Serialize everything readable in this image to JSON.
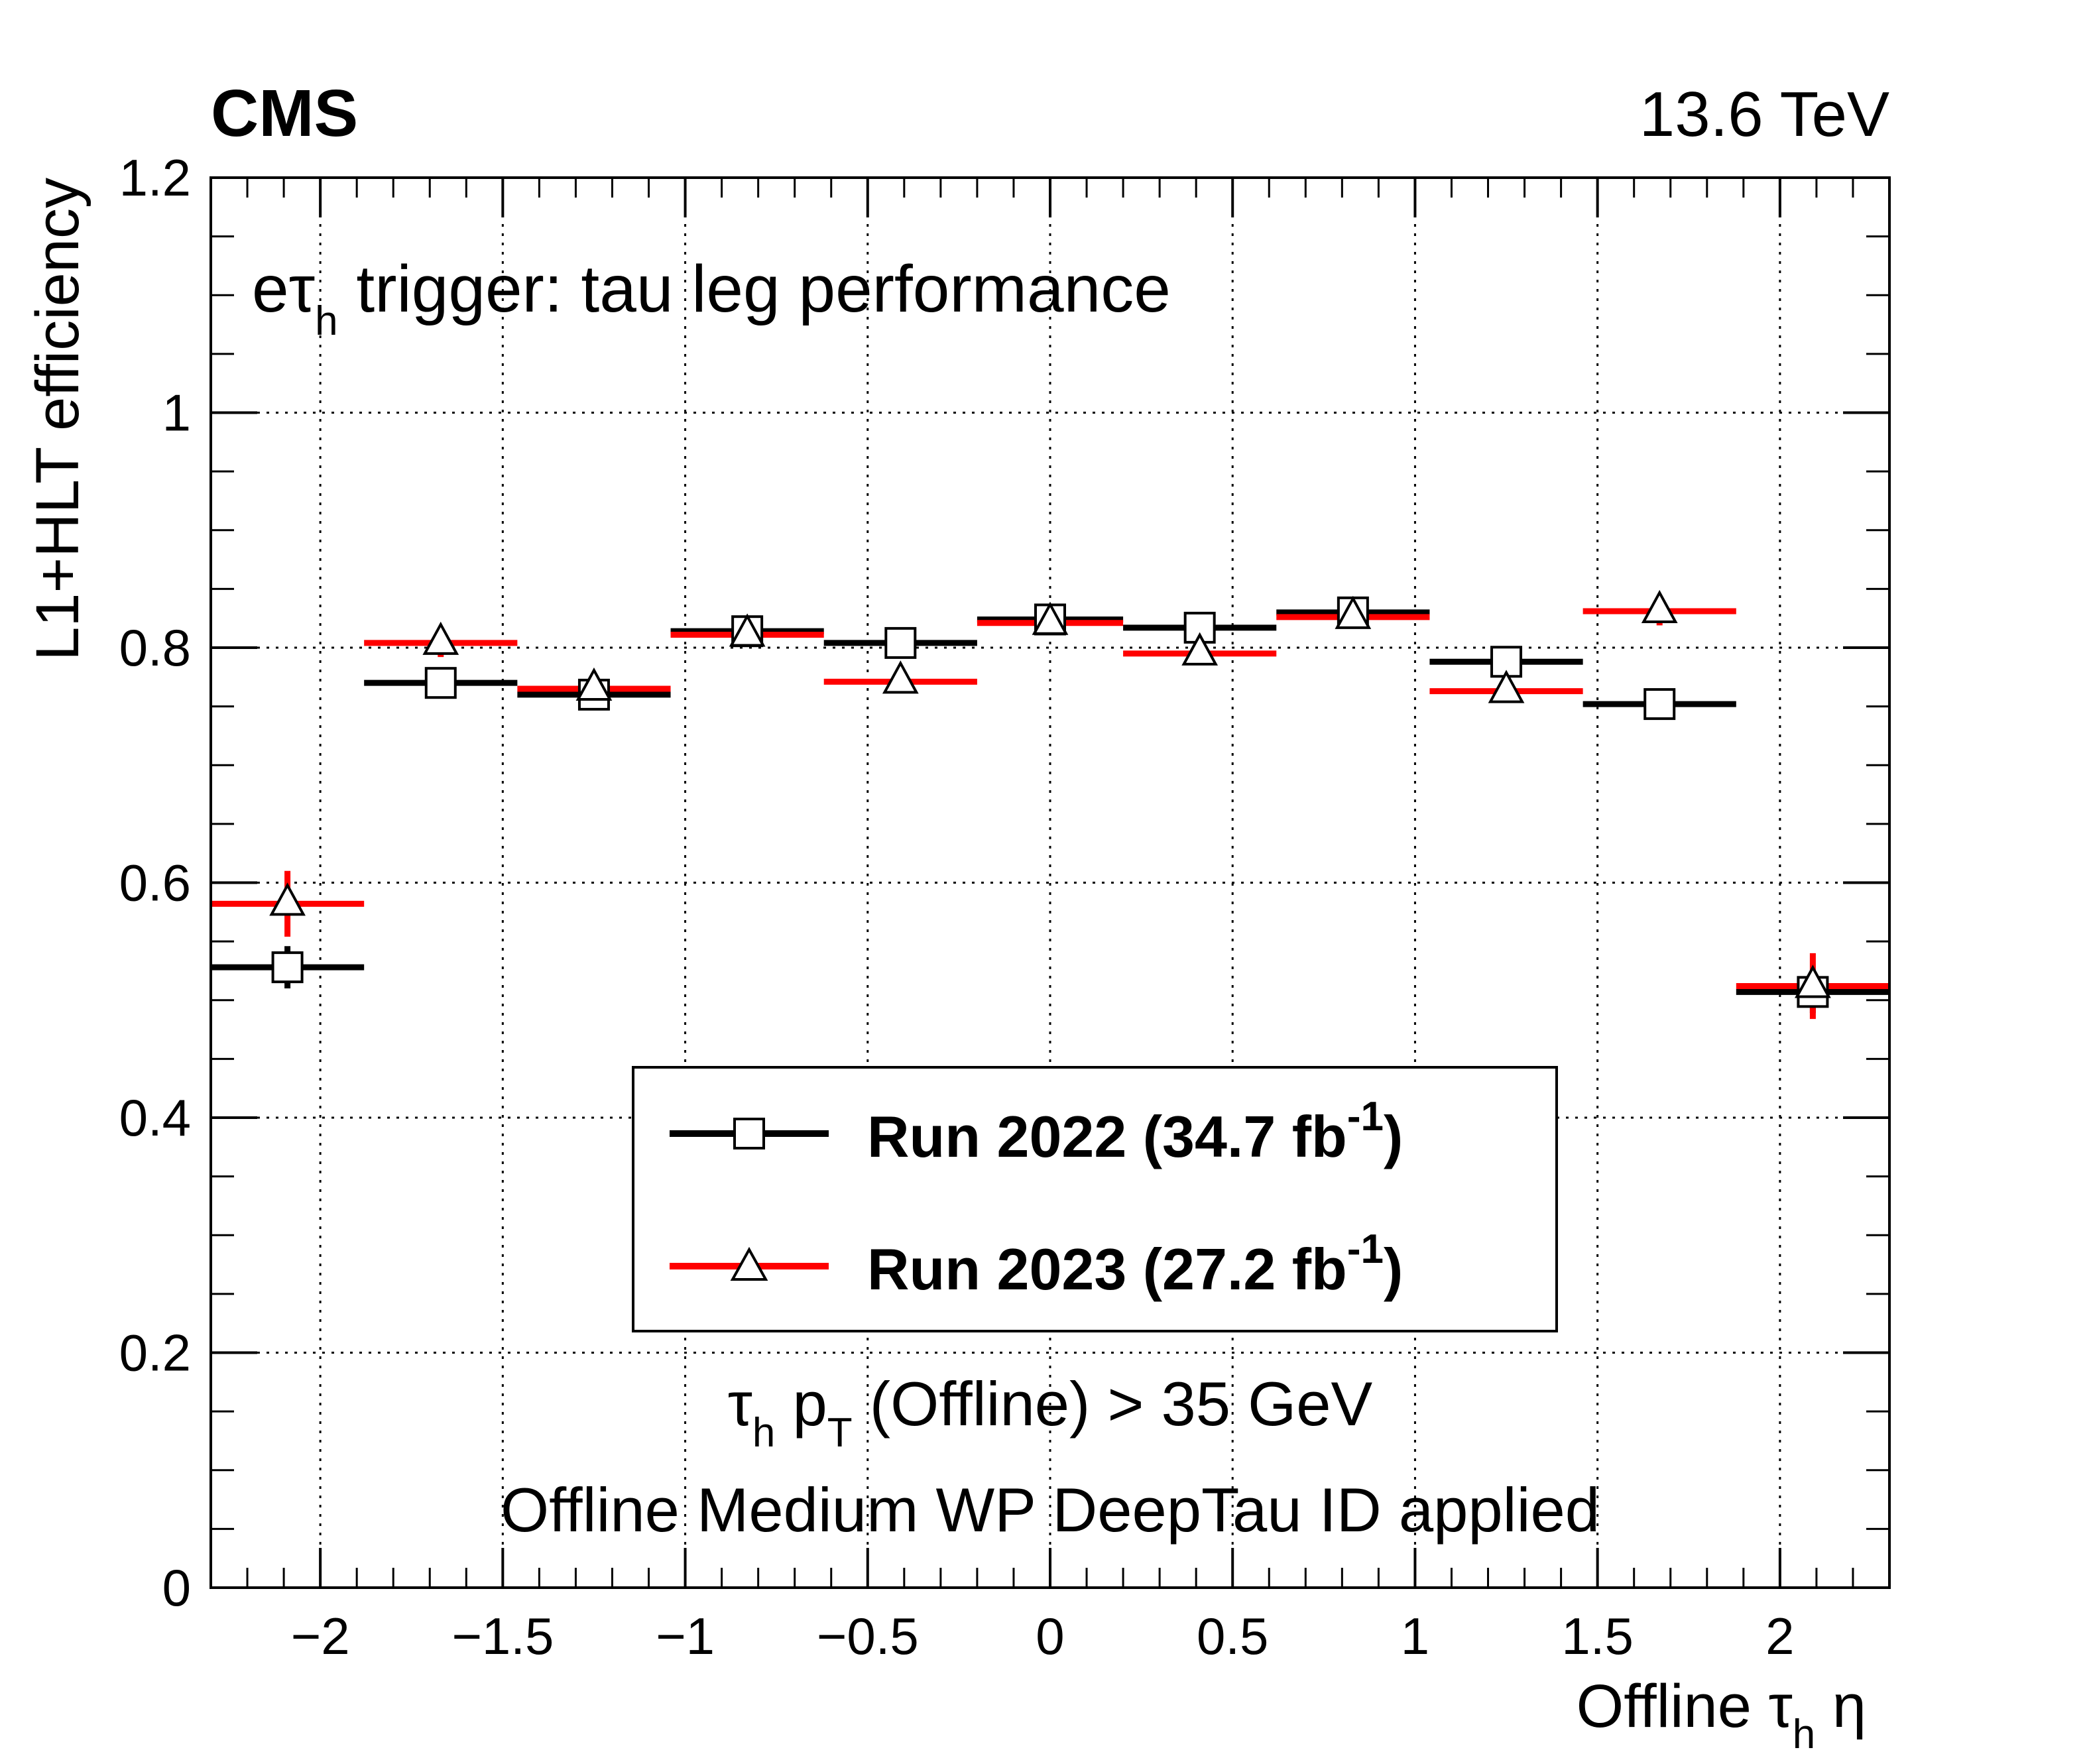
{
  "header": {
    "experiment": "CMS",
    "energy": "13.6 TeV"
  },
  "panel": {
    "title_main": "e",
    "title_tau": "τ",
    "title_sub": "h",
    "title_rest": " trigger: tau leg performance"
  },
  "notes": {
    "line1_tau": "τ",
    "line1_tau_sub": "h",
    "line1_p": " p",
    "line1_p_sub": "T",
    "line1_rest": " (Offline) > 35 GeV",
    "line2": "Offline Medium WP DeepTau ID applied"
  },
  "axes": {
    "ylabel": "L1+HLT efficiency",
    "xlabel_main": "Offline ",
    "xlabel_tau": "τ",
    "xlabel_sub": "h",
    "xlabel_eta": " η"
  },
  "legend": {
    "series0_main": "Run 2022 (34.7 fb",
    "series0_sup": "-1",
    "series0_close": ")",
    "series1_main": "Run 2023 (27.2 fb",
    "series1_sup": "-1",
    "series1_close": ")"
  },
  "chart_data": {
    "type": "scatter",
    "xlim": [
      -2.3,
      2.3
    ],
    "ylim": [
      0,
      1.2
    ],
    "x_ticks": [
      -2,
      -1.5,
      -1,
      -0.5,
      0,
      0.5,
      1,
      1.5,
      2
    ],
    "x_tick_labels": [
      "−2",
      "−1.5",
      "−1",
      "−0.5",
      "0",
      "0.5",
      "1",
      "1.5",
      "2"
    ],
    "y_ticks": [
      0,
      0.2,
      0.4,
      0.6,
      0.8,
      1,
      1.2
    ],
    "y_tick_labels": [
      "0",
      "0.2",
      "0.4",
      "0.6",
      "0.8",
      "1",
      "1.2"
    ],
    "grid": true,
    "legend_position": "center-bottom",
    "bin_edges": [
      -2.3,
      -1.88,
      -1.46,
      -1.04,
      -0.62,
      -0.2,
      0.2,
      0.62,
      1.04,
      1.46,
      1.88,
      2.3
    ],
    "series": [
      {
        "name": "Run 2022 (34.7 fb-1)",
        "marker": "open-square",
        "color": "#000000",
        "x": [
          -2.09,
          -1.67,
          -1.25,
          -0.83,
          -0.41,
          0.0,
          0.41,
          0.83,
          1.25,
          1.67,
          2.09
        ],
        "y": [
          0.528,
          0.77,
          0.76,
          0.814,
          0.804,
          0.824,
          0.817,
          0.83,
          0.788,
          0.752,
          0.507
        ],
        "yerr": [
          0.018,
          0.008,
          0.007,
          0.006,
          0.006,
          0.005,
          0.006,
          0.006,
          0.007,
          0.008,
          0.018
        ]
      },
      {
        "name": "Run 2023 (27.2 fb-1)",
        "marker": "open-triangle",
        "color": "#ff0000",
        "x": [
          -2.09,
          -1.67,
          -1.25,
          -0.83,
          -0.41,
          0.0,
          0.41,
          0.83,
          1.25,
          1.67,
          2.09
        ],
        "y": [
          0.582,
          0.804,
          0.765,
          0.811,
          0.771,
          0.821,
          0.795,
          0.826,
          0.763,
          0.831,
          0.512
        ],
        "yerr": [
          0.028,
          0.012,
          0.01,
          0.008,
          0.009,
          0.007,
          0.008,
          0.008,
          0.01,
          0.012,
          0.028
        ]
      }
    ]
  }
}
